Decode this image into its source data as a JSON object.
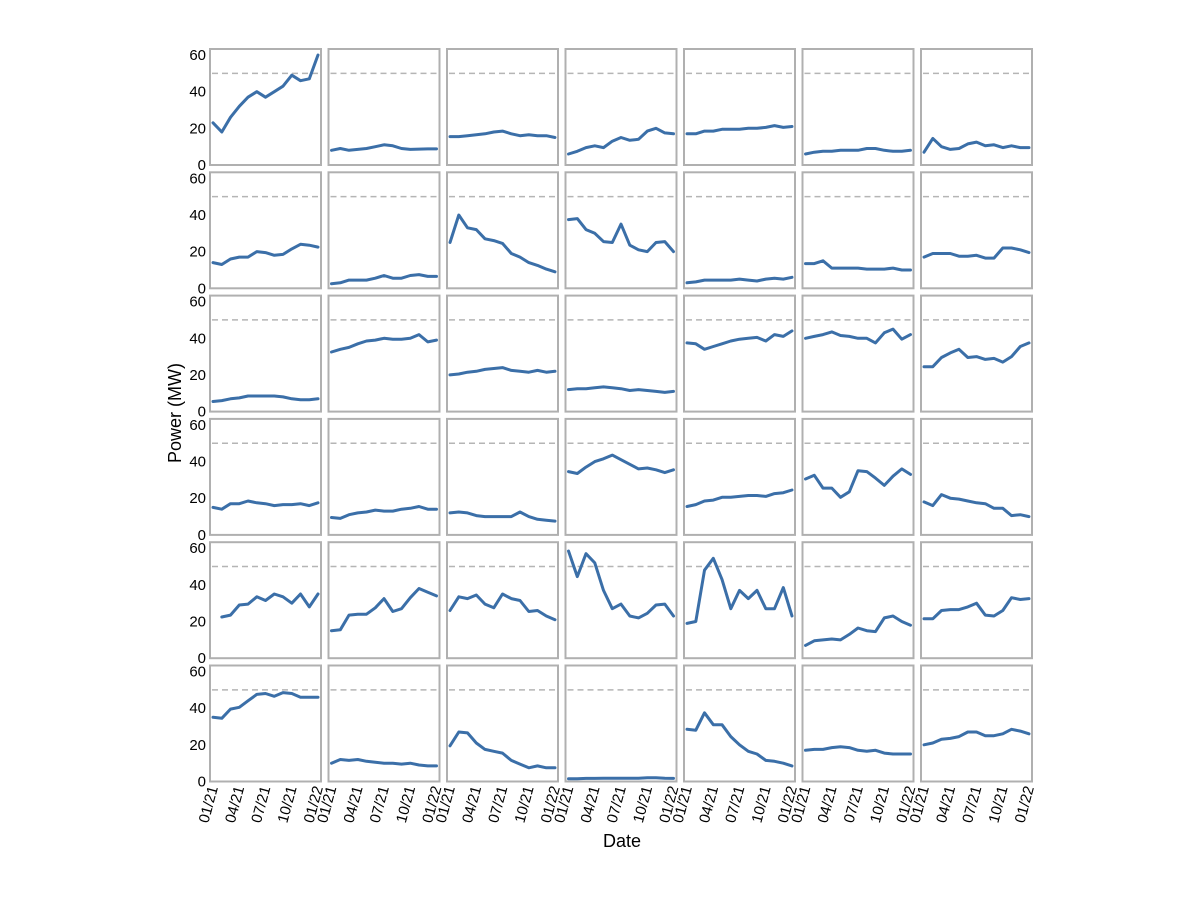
{
  "chart_data": {
    "type": "line",
    "layout": "small-multiples grid, 6 rows by 7 columns",
    "xlabel": "Date",
    "ylabel": "Power (MW)",
    "x": [
      "01/21",
      "02/21",
      "03/21",
      "04/21",
      "05/21",
      "06/21",
      "07/21",
      "08/21",
      "09/21",
      "10/21",
      "11/21",
      "12/21",
      "01/22"
    ],
    "xticks": [
      "01/21",
      "04/21",
      "07/21",
      "10/21",
      "01/22"
    ],
    "yticks": [
      0,
      20,
      40,
      60
    ],
    "ylim": [
      0,
      60
    ],
    "reference_line": 50,
    "grid": false,
    "colors": {
      "line": "#3b6fa8",
      "reference": "#b5b5b5",
      "frame": "#b0b0b0"
    },
    "panels": [
      [
        23,
        18,
        26,
        32,
        37,
        40,
        37,
        40,
        43,
        49,
        46,
        47,
        60
      ],
      [
        8,
        9,
        8,
        8.5,
        9,
        10,
        11,
        10.5,
        9,
        8.5,
        8.7,
        8.8,
        8.8
      ],
      [
        15.5,
        15.5,
        16,
        16.5,
        17,
        18,
        18.5,
        17,
        16,
        16.5,
        16,
        16,
        15
      ],
      [
        6,
        7.5,
        9.5,
        10.5,
        9.5,
        13,
        15,
        13.5,
        14,
        18.5,
        20,
        17.5,
        17
      ],
      [
        17,
        17,
        18.5,
        18.5,
        19.5,
        19.5,
        19.5,
        20,
        20,
        20.5,
        21.5,
        20.5,
        21
      ],
      [
        6,
        7,
        7.5,
        7.5,
        8,
        8,
        8,
        9,
        9,
        8,
        7.5,
        7.5,
        8
      ],
      [
        7,
        14.5,
        10,
        8.5,
        9,
        11.5,
        12.5,
        10.5,
        11,
        9.5,
        10.5,
        9.5,
        9.5
      ],
      [
        14,
        13,
        16,
        17,
        17,
        20,
        19.5,
        18,
        18.5,
        21.5,
        24,
        23.5,
        22.5
      ],
      [
        2.5,
        3,
        4.5,
        4.5,
        4.5,
        5.5,
        7,
        5.5,
        5.5,
        7,
        7.5,
        6.5,
        6.5
      ],
      [
        25,
        40,
        33,
        32,
        27,
        26,
        24.5,
        19,
        17,
        14,
        12.5,
        10.5,
        9
      ],
      [
        37.5,
        38,
        32,
        30,
        25.5,
        25,
        35,
        23.5,
        21,
        20,
        25,
        25.5,
        20
      ],
      [
        3,
        3.5,
        4.5,
        4.5,
        4.5,
        4.5,
        5,
        4.5,
        4,
        5,
        5.5,
        5,
        6
      ],
      [
        13.5,
        13.5,
        15,
        11,
        11,
        11,
        11,
        10.5,
        10.5,
        10.5,
        11,
        10,
        10
      ],
      [
        17,
        19,
        19,
        19,
        17.5,
        17.5,
        18,
        16.5,
        16.5,
        22,
        22,
        21,
        19.5
      ],
      [
        5.5,
        6,
        7,
        7.5,
        8.5,
        8.5,
        8.5,
        8.5,
        8,
        7,
        6.5,
        6.5,
        7
      ],
      [
        32.5,
        34,
        35,
        37,
        38.5,
        39,
        40,
        39.5,
        39.5,
        40,
        42,
        38,
        39
      ],
      [
        20,
        20.5,
        21.5,
        22,
        23,
        23.5,
        24,
        22.5,
        22,
        21.5,
        22.5,
        21.5,
        22
      ],
      [
        12,
        12.5,
        12.5,
        13,
        13.5,
        13,
        12.5,
        11.5,
        12,
        11.5,
        11,
        10.5,
        11
      ],
      [
        37.5,
        37,
        34,
        35.5,
        37,
        38.5,
        39.5,
        40,
        40.5,
        38.5,
        42,
        41,
        44
      ],
      [
        40,
        41,
        42,
        43.5,
        41.5,
        41,
        40,
        40,
        37.5,
        43,
        45,
        39.5,
        42
      ],
      [
        24.5,
        24.5,
        29.5,
        32,
        34,
        29.5,
        30,
        28.5,
        29,
        27,
        30,
        35.5,
        37.5
      ],
      [
        15,
        14,
        17,
        17,
        18.5,
        17.5,
        17,
        16,
        16.5,
        16.5,
        17,
        16,
        17.5
      ],
      [
        9.5,
        9,
        11,
        12,
        12.5,
        13.5,
        13,
        13,
        14,
        14.5,
        15.5,
        14,
        14
      ],
      [
        12,
        12.5,
        12,
        10.5,
        10,
        10,
        10,
        10,
        12.5,
        10,
        8.5,
        8,
        7.5
      ],
      [
        34.5,
        33.5,
        37,
        40,
        41.5,
        43.5,
        41,
        38.5,
        36,
        36.5,
        35.5,
        34,
        35.5
      ],
      [
        15.5,
        16.5,
        18.5,
        19,
        20.5,
        20.5,
        21,
        21.5,
        21.5,
        21,
        22.5,
        23,
        24.5
      ],
      [
        30.5,
        32.5,
        25.5,
        25.5,
        20.5,
        23.5,
        35,
        34.5,
        31,
        27,
        32,
        36,
        33
      ],
      [
        18,
        16,
        22,
        20,
        19.5,
        18.5,
        17.5,
        17,
        14.5,
        14.5,
        10.5,
        11,
        10
      ],
      [
        null,
        22.5,
        23.5,
        29,
        29.5,
        33.5,
        31.5,
        35,
        33.5,
        30,
        35,
        28,
        35
      ],
      [
        15,
        15.5,
        23.5,
        24,
        24,
        27.5,
        32.5,
        25.5,
        27,
        33,
        38,
        36,
        34
      ],
      [
        26,
        33.5,
        32.5,
        34.5,
        29.5,
        27.5,
        35,
        32.5,
        31.5,
        25.5,
        26,
        23,
        21
      ],
      [
        58.5,
        44.5,
        57,
        52,
        37,
        27,
        29.5,
        23,
        22,
        24.5,
        29,
        29.5,
        23
      ],
      [
        19,
        20,
        48,
        54.5,
        43,
        27,
        37,
        32.5,
        37,
        27,
        27,
        38.5,
        23
      ],
      [
        7,
        9.5,
        10,
        10.5,
        10,
        13,
        16.5,
        15,
        14.5,
        22,
        23,
        20,
        18
      ],
      [
        21.5,
        21.5,
        26,
        26.5,
        26.5,
        28,
        30,
        23.5,
        23,
        26,
        33,
        32,
        32.5
      ],
      [
        35,
        34.5,
        39.5,
        40.5,
        44,
        47.5,
        48,
        46.5,
        48.5,
        48,
        46,
        46,
        46
      ],
      [
        10,
        12,
        11.5,
        12,
        11,
        10.5,
        10,
        10,
        9.5,
        10,
        9,
        8.5,
        8.5
      ],
      [
        19.5,
        27,
        26.5,
        21,
        17.5,
        16.5,
        15.5,
        11.5,
        9.5,
        7.5,
        8.5,
        7.5,
        7.5
      ],
      [
        1.5,
        1.5,
        1.7,
        1.7,
        1.8,
        1.8,
        1.8,
        1.8,
        1.8,
        2,
        2,
        1.8,
        1.7
      ],
      [
        28.5,
        28,
        37.5,
        31,
        31,
        24.5,
        20,
        16.5,
        15,
        11.5,
        11,
        10,
        8.5
      ],
      [
        17,
        17.5,
        17.5,
        18.5,
        19,
        18.5,
        17,
        16.5,
        17,
        15.5,
        15,
        15,
        15
      ],
      [
        20,
        21,
        23,
        23.5,
        24.5,
        27,
        27,
        25,
        25,
        26,
        28.5,
        27.5,
        26
      ]
    ]
  }
}
